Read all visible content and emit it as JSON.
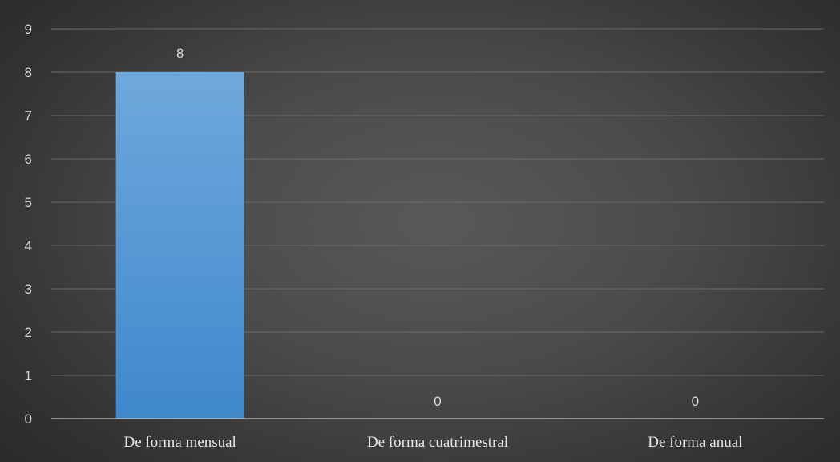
{
  "chart_data": {
    "type": "bar",
    "categories": [
      "De forma mensual",
      "De forma cuatrimestral",
      "De forma anual"
    ],
    "values": [
      8,
      0,
      0
    ],
    "data_labels": [
      "8",
      "0",
      "0"
    ],
    "y_ticks": [
      "0",
      "1",
      "2",
      "3",
      "4",
      "5",
      "6",
      "7",
      "8",
      "9"
    ],
    "ylim": [
      0,
      9
    ],
    "grid": true,
    "legend": "none",
    "title": "",
    "xlabel": "",
    "ylabel": "",
    "colors": {
      "bar_top": "#6fa8dc",
      "bar_bottom": "#3f88cc",
      "text": "#d9d9d9",
      "gridline": "#6a6a6a",
      "axis": "#bfbfbf"
    }
  }
}
